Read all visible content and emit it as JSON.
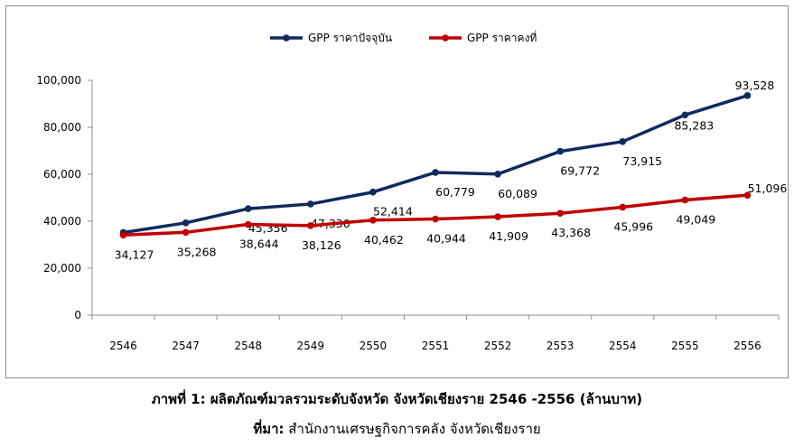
{
  "chart_data": {
    "type": "line",
    "categories": [
      "2546",
      "2547",
      "2548",
      "2549",
      "2550",
      "2551",
      "2552",
      "2553",
      "2554",
      "2555",
      "2556"
    ],
    "series": [
      {
        "name": "GPP ราคาปัจจุบัน",
        "color": "#0f2a5e",
        "values": [
          35200,
          39300,
          45356,
          47330,
          52414,
          60779,
          60089,
          69772,
          73915,
          85283,
          93528
        ],
        "data_labels": [
          null,
          null,
          "45,356",
          "47,330",
          "52,414",
          "60,779",
          "60,089",
          "69,772",
          "73,915",
          "85,283",
          "93,528"
        ]
      },
      {
        "name": "GPP ราคาคงที่",
        "color": "#c00000",
        "values": [
          34127,
          35268,
          38644,
          38126,
          40462,
          40944,
          41909,
          43368,
          45996,
          49049,
          51096
        ],
        "data_labels": [
          "34,127",
          "35,268",
          "38,644",
          "38,126",
          "40,462",
          "40,944",
          "41,909",
          "43,368",
          "45,996",
          "49,049",
          "51,096"
        ]
      }
    ],
    "y_ticks": [
      "0",
      "20,000",
      "40,000",
      "60,000",
      "80,000",
      "100,000"
    ],
    "ylim": [
      0,
      100000
    ],
    "legend_position": "top-center",
    "grid": false
  },
  "caption": {
    "prefix": "ภาพที่ 1:",
    "text": "ผลิตภัณฑ์มวลรวมระดับจังหวัด จังหวัดเชียงราย 2546 -2556 (ล้านบาท)"
  },
  "source": {
    "label": "ที่มา:",
    "text": "สำนักงานเศรษฐกิจการคลัง จังหวัดเชียงราย"
  }
}
